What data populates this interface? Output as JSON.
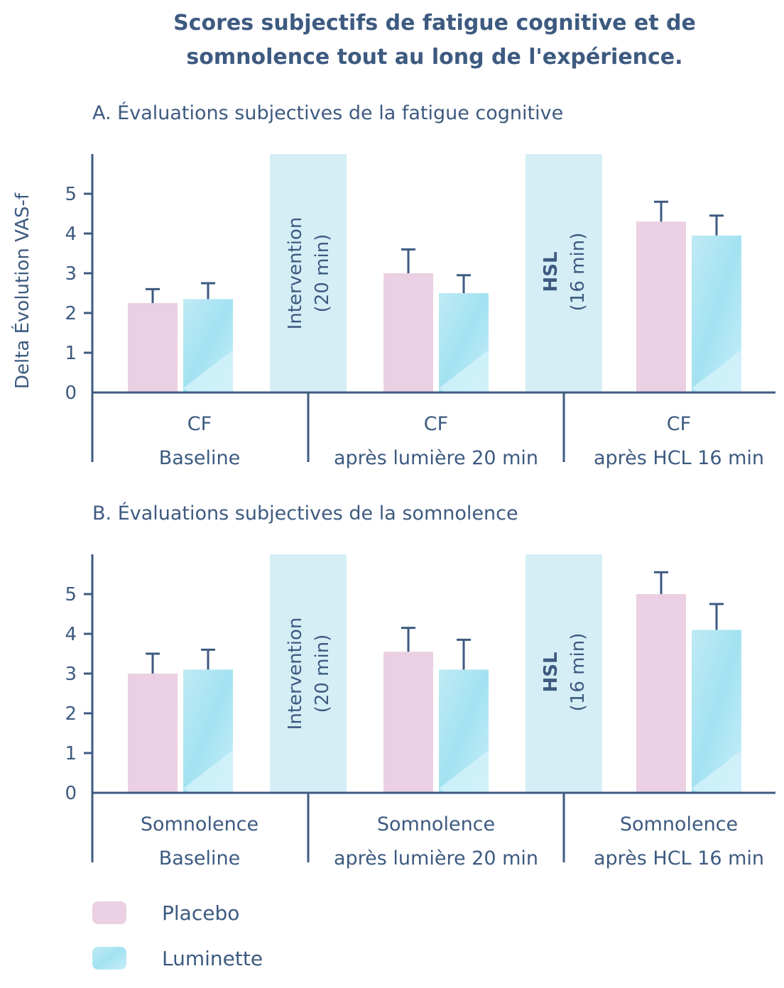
{
  "title_line1": "Scores subjectifs de fatigue cognitive et de",
  "title_line2": "somnolence tout au long de l'expérience.",
  "ylabel": "Delta Évolution VAS-f",
  "colors": {
    "text": "#3d5a80",
    "axis": "#3d5a80",
    "placebo": "#ebcfe2",
    "luminette": "#aee6f3",
    "luminette_light": "#d4f3fa",
    "intervention_band": "#d5eef6"
  },
  "legend": [
    {
      "name": "Placebo",
      "color": "#ebcfe2"
    },
    {
      "name": "Luminette",
      "color": "#aee6f3"
    }
  ],
  "bands": [
    {
      "line1": "Intervention",
      "line2": "(20 min)"
    },
    {
      "line1": "HSL",
      "line2": "(16 min)"
    }
  ],
  "chart_data": [
    {
      "type": "bar",
      "title": "A. Évaluations subjectives de la fatigue cognitive",
      "ylim": [
        0,
        6
      ],
      "yticks": [
        "0",
        "1",
        "2",
        "3",
        "4",
        "5"
      ],
      "groups": [
        {
          "line1": "CF",
          "line2": "Baseline"
        },
        {
          "line1": "CF",
          "line2": "après lumière 20 min"
        },
        {
          "line1": "CF",
          "line2": "après HCL 16 min"
        }
      ],
      "series": [
        {
          "name": "Placebo",
          "values": [
            2.25,
            3.0,
            4.3
          ],
          "errors": [
            0.35,
            0.6,
            0.5
          ]
        },
        {
          "name": "Luminette",
          "values": [
            2.35,
            2.5,
            3.95
          ],
          "errors": [
            0.4,
            0.45,
            0.5
          ]
        }
      ]
    },
    {
      "type": "bar",
      "title": "B. Évaluations subjectives de la somnolence",
      "ylim": [
        0,
        6
      ],
      "yticks": [
        "0",
        "1",
        "2",
        "3",
        "4",
        "5"
      ],
      "groups": [
        {
          "line1": "Somnolence",
          "line2": "Baseline"
        },
        {
          "line1": "Somnolence",
          "line2": "après lumière 20 min"
        },
        {
          "line1": "Somnolence",
          "line2": "après HCL 16 min"
        }
      ],
      "series": [
        {
          "name": "Placebo",
          "values": [
            3.0,
            3.55,
            5.0
          ],
          "errors": [
            0.5,
            0.6,
            0.55
          ]
        },
        {
          "name": "Luminette",
          "values": [
            3.1,
            3.1,
            4.1
          ],
          "errors": [
            0.5,
            0.75,
            0.65
          ]
        }
      ]
    }
  ]
}
